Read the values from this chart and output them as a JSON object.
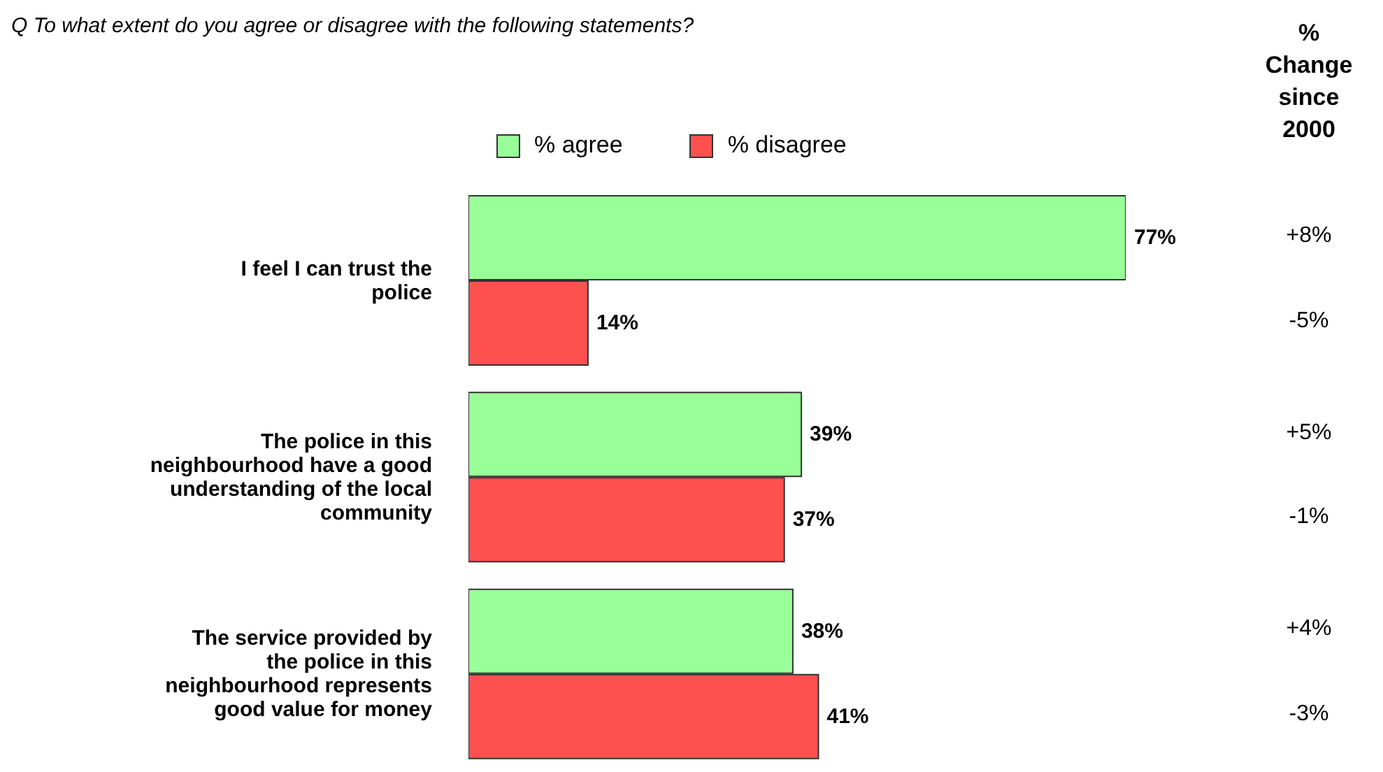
{
  "chart_data": {
    "type": "bar",
    "orientation": "horizontal",
    "title": "Q  To what extent do you agree or disagree with the following statements?",
    "categories": [
      "I feel I can trust the police",
      "The police in this neighbourhood have a good understanding of the local community",
      "The service provided by the police in this neighbourhood represents good value for money"
    ],
    "series": [
      {
        "name": "% agree",
        "color": "#99ff99",
        "values": [
          77,
          39,
          38
        ],
        "value_labels": [
          "77%",
          "39%",
          "38%"
        ]
      },
      {
        "name": "% disagree",
        "color": "#ff5050",
        "values": [
          14,
          37,
          41
        ],
        "value_labels": [
          "14%",
          "37%",
          "41%"
        ]
      }
    ],
    "annotations": [
      "% Change since 2000",
      "+8%",
      "-5%",
      "+5%",
      "-1%",
      "+4%",
      "-3%"
    ],
    "legend": "top",
    "grid": false
  }
}
